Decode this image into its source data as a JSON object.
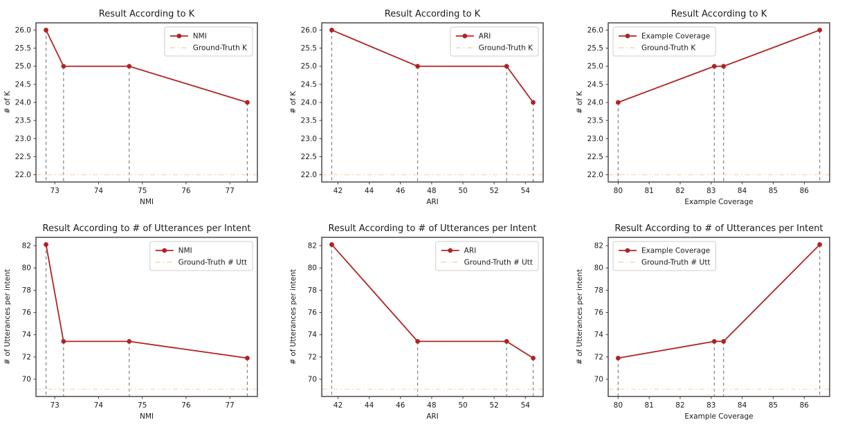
{
  "style": {
    "series_color": "#b22222",
    "ground_truth_color": "#ffdab9",
    "stem_color": "#808080",
    "spine_color": "#3c3c3c",
    "text_color": "#1a1a1a",
    "legend_border_color": "#cccccc",
    "background": "#ffffff"
  },
  "chart_data": [
    {
      "type": "line",
      "title": "Result According to K",
      "xlabel": "NMI",
      "ylabel": "# of K",
      "series": [
        {
          "name": "NMI",
          "x": [
            72.8,
            73.2,
            74.7,
            77.4
          ],
          "y": [
            26.0,
            25.0,
            25.0,
            24.0
          ]
        }
      ],
      "ground_truth": {
        "label": "Ground-Truth K",
        "value": 22.0
      },
      "xlim": [
        72.57,
        77.63
      ],
      "ylim": [
        21.8,
        26.2
      ],
      "xticks": [
        73,
        74,
        75,
        76,
        77
      ],
      "xtick_labels": [
        "73",
        "74",
        "75",
        "76",
        "77"
      ],
      "yticks": [
        22,
        22.5,
        23,
        23.5,
        24,
        24.5,
        25,
        25.5,
        26
      ],
      "ytick_labels": [
        "22.0",
        "22.5",
        "23.0",
        "23.5",
        "24.0",
        "24.5",
        "25.0",
        "25.5",
        "26.0"
      ],
      "legend_position": "upper-right",
      "grid": false
    },
    {
      "type": "line",
      "title": "Result According to K",
      "xlabel": "ARI",
      "ylabel": "# of K",
      "series": [
        {
          "name": "ARI",
          "x": [
            41.6,
            47.1,
            52.8,
            54.5
          ],
          "y": [
            26.0,
            25.0,
            25.0,
            24.0
          ]
        }
      ],
      "ground_truth": {
        "label": "Ground-Truth K",
        "value": 22.0
      },
      "xlim": [
        40.96,
        55.14
      ],
      "ylim": [
        21.8,
        26.2
      ],
      "xticks": [
        42,
        44,
        46,
        48,
        50,
        52,
        54
      ],
      "xtick_labels": [
        "42",
        "44",
        "46",
        "48",
        "50",
        "52",
        "54"
      ],
      "yticks": [
        22,
        22.5,
        23,
        23.5,
        24,
        24.5,
        25,
        25.5,
        26
      ],
      "ytick_labels": [
        "22.0",
        "22.5",
        "23.0",
        "23.5",
        "24.0",
        "24.5",
        "25.0",
        "25.5",
        "26.0"
      ],
      "legend_position": "upper-right",
      "grid": false
    },
    {
      "type": "line",
      "title": "Result According to K",
      "xlabel": "Example Coverage",
      "ylabel": "# of K",
      "series": [
        {
          "name": "Example Coverage",
          "x": [
            80.0,
            83.1,
            83.4,
            86.5
          ],
          "y": [
            24.0,
            25.0,
            25.0,
            26.0
          ]
        }
      ],
      "ground_truth": {
        "label": "Ground-Truth K",
        "value": 22.0
      },
      "xlim": [
        79.68,
        86.82
      ],
      "ylim": [
        21.8,
        26.2
      ],
      "xticks": [
        80,
        81,
        82,
        83,
        84,
        85,
        86
      ],
      "xtick_labels": [
        "80",
        "81",
        "82",
        "83",
        "84",
        "85",
        "86"
      ],
      "yticks": [
        22,
        22.5,
        23,
        23.5,
        24,
        24.5,
        25,
        25.5,
        26
      ],
      "ytick_labels": [
        "22.0",
        "22.5",
        "23.0",
        "23.5",
        "24.0",
        "24.5",
        "25.0",
        "25.5",
        "26.0"
      ],
      "legend_position": "upper-left",
      "grid": false
    },
    {
      "type": "line",
      "title": "Result According to # of Utterances per Intent",
      "xlabel": "NMI",
      "ylabel": "# of Utterances per intent",
      "series": [
        {
          "name": "NMI",
          "x": [
            72.8,
            73.2,
            74.7,
            77.4
          ],
          "y": [
            82.1,
            73.4,
            73.4,
            71.9
          ]
        }
      ],
      "ground_truth": {
        "label": "Ground-Truth # Utt",
        "value": 69.1
      },
      "xlim": [
        72.57,
        77.63
      ],
      "ylim": [
        68.45,
        82.75
      ],
      "xticks": [
        73,
        74,
        75,
        76,
        77
      ],
      "xtick_labels": [
        "73",
        "74",
        "75",
        "76",
        "77"
      ],
      "yticks": [
        70,
        72,
        74,
        76,
        78,
        80,
        82
      ],
      "ytick_labels": [
        "70",
        "72",
        "74",
        "76",
        "78",
        "80",
        "82"
      ],
      "legend_position": "upper-right",
      "grid": false
    },
    {
      "type": "line",
      "title": "Result According to # of Utterances per Intent",
      "xlabel": "ARI",
      "ylabel": "# of Utterances per intent",
      "series": [
        {
          "name": "ARI",
          "x": [
            41.6,
            47.1,
            52.8,
            54.5
          ],
          "y": [
            82.1,
            73.4,
            73.4,
            71.9
          ]
        }
      ],
      "ground_truth": {
        "label": "Ground-Truth # Utt",
        "value": 69.1
      },
      "xlim": [
        40.96,
        55.14
      ],
      "ylim": [
        68.45,
        82.75
      ],
      "xticks": [
        42,
        44,
        46,
        48,
        50,
        52,
        54
      ],
      "xtick_labels": [
        "42",
        "44",
        "46",
        "48",
        "50",
        "52",
        "54"
      ],
      "yticks": [
        70,
        72,
        74,
        76,
        78,
        80,
        82
      ],
      "ytick_labels": [
        "70",
        "72",
        "74",
        "76",
        "78",
        "80",
        "82"
      ],
      "legend_position": "upper-right",
      "grid": false
    },
    {
      "type": "line",
      "title": "Result According to # of Utterances per Intent",
      "xlabel": "Example Coverage",
      "ylabel": "# of Utterances per intent",
      "series": [
        {
          "name": "Example Coverage",
          "x": [
            80.0,
            83.1,
            83.4,
            86.5
          ],
          "y": [
            71.9,
            73.4,
            73.4,
            82.1
          ]
        }
      ],
      "ground_truth": {
        "label": "Ground-Truth # Utt",
        "value": 69.1
      },
      "xlim": [
        79.68,
        86.82
      ],
      "ylim": [
        68.45,
        82.75
      ],
      "xticks": [
        80,
        81,
        82,
        83,
        84,
        85,
        86
      ],
      "xtick_labels": [
        "80",
        "81",
        "82",
        "83",
        "84",
        "85",
        "86"
      ],
      "yticks": [
        70,
        72,
        74,
        76,
        78,
        80,
        82
      ],
      "ytick_labels": [
        "70",
        "72",
        "74",
        "76",
        "78",
        "80",
        "82"
      ],
      "legend_position": "upper-left",
      "grid": false
    }
  ]
}
